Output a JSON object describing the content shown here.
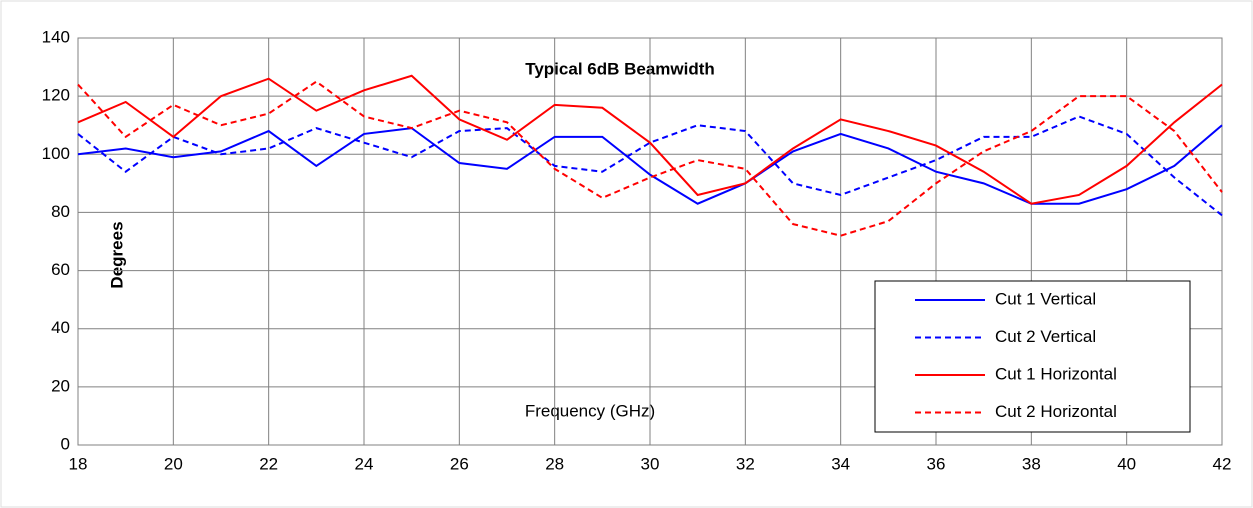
{
  "chart_data": {
    "type": "line",
    "title": "Typical 6dB Beamwidth",
    "x_label": "Frequency  (GHz)",
    "y_label": "Degrees",
    "x": [
      18,
      19,
      20,
      21,
      22,
      23,
      24,
      25,
      26,
      27,
      28,
      29,
      30,
      31,
      32,
      33,
      34,
      35,
      36,
      37,
      38,
      39,
      40,
      41,
      42
    ],
    "series": [
      {
        "name": "Cut 1 Vertical",
        "color": "#0000ff",
        "dashed": false,
        "values": [
          100,
          102,
          99,
          101,
          108,
          96,
          107,
          109,
          97,
          95,
          106,
          106,
          93,
          83,
          90,
          101,
          107,
          102,
          94,
          90,
          83,
          83,
          88,
          96,
          110
        ]
      },
      {
        "name": "Cut 2 Vertical",
        "color": "#0000ff",
        "dashed": true,
        "values": [
          107,
          94,
          106,
          100,
          102,
          109,
          104,
          99,
          108,
          109,
          96,
          94,
          104,
          110,
          108,
          90,
          86,
          92,
          98,
          106,
          106,
          113,
          107,
          92,
          79
        ]
      },
      {
        "name": "Cut 1 Horizontal",
        "color": "#ff0000",
        "dashed": false,
        "values": [
          111,
          118,
          106,
          120,
          126,
          115,
          122,
          127,
          112,
          105,
          117,
          116,
          104,
          86,
          90,
          102,
          112,
          108,
          103,
          94,
          83,
          86,
          96,
          111,
          124
        ]
      },
      {
        "name": "Cut 2 Horizontal",
        "color": "#ff0000",
        "dashed": true,
        "values": [
          124,
          106,
          117,
          110,
          114,
          125,
          113,
          109,
          115,
          111,
          95,
          85,
          92,
          98,
          95,
          76,
          72,
          77,
          90,
          101,
          108,
          120,
          120,
          108,
          87
        ]
      }
    ],
    "xlim": [
      18,
      42
    ],
    "xticks": [
      18,
      20,
      22,
      24,
      26,
      28,
      30,
      32,
      34,
      36,
      38,
      40,
      42
    ],
    "ylim": [
      0,
      140
    ],
    "yticks": [
      0,
      20,
      40,
      60,
      80,
      100,
      120,
      140
    ],
    "grid": true,
    "legend": "lower right"
  }
}
